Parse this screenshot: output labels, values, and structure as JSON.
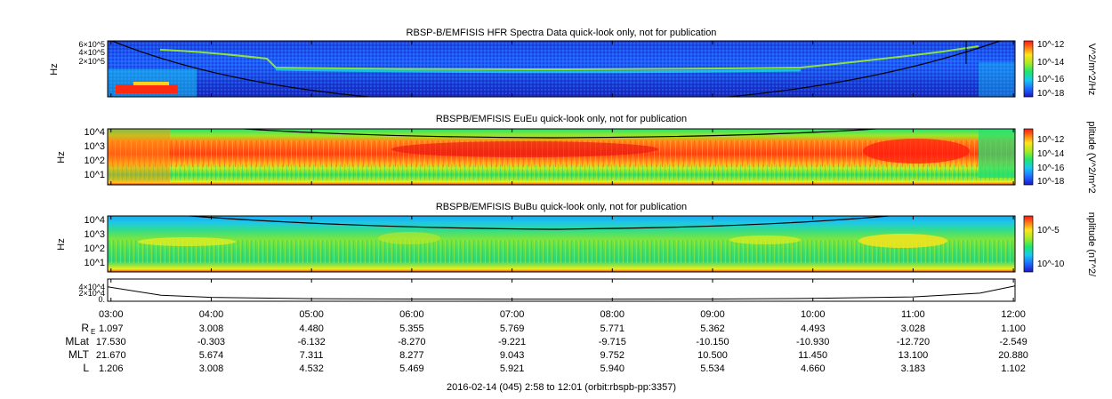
{
  "chart_data": [
    {
      "type": "heatmap",
      "title": "RBSP-B/EMFISIS  HFR Spectra Data quick-look only, not for publication",
      "ylabel": "Hz",
      "colorbar_label": "V^2/m^2/Hz",
      "yticks": [
        "6×10^5",
        "4×10^5",
        "2×10^5"
      ],
      "colorbar_ticks": [
        "10^-12",
        "10^-14",
        "10^-16",
        "10^-18"
      ],
      "colormap": "rainbow"
    },
    {
      "type": "heatmap",
      "title": "RBSPB/EMFISIS  EuEu quick-look only, not for publication",
      "ylabel": "Hz",
      "colorbar_label": "plitude (V^2/m^2",
      "yticks": [
        "10^4",
        "10^3",
        "10^2",
        "10^1"
      ],
      "colorbar_ticks": [
        "10^-12",
        "10^-14",
        "10^-16",
        "10^-18"
      ],
      "colormap": "rainbow"
    },
    {
      "type": "heatmap",
      "title": "RBSPB/EMFISIS  BuBu quick-look only, not for publication",
      "ylabel": "Hz",
      "colorbar_label": "nplitude (nT^2/",
      "yticks": [
        "10^4",
        "10^3",
        "10^2",
        "10^1"
      ],
      "colorbar_ticks": [
        "10^-5",
        "10^-10"
      ],
      "colormap": "rainbow"
    },
    {
      "type": "line",
      "yticks": [
        "4×10^4",
        "2×10^4",
        "0."
      ],
      "series": [
        {
          "x": [
            "02:58",
            "03:30",
            "04:00",
            "05:00",
            "06:00",
            "07:00",
            "08:00",
            "09:00",
            "10:00",
            "11:00",
            "11:40",
            "12:01"
          ],
          "values": [
            30000,
            10000,
            5000,
            2000,
            1000,
            800,
            800,
            1000,
            2500,
            6000,
            15000,
            32000
          ]
        }
      ]
    }
  ],
  "time_axis": {
    "ticks": [
      "03:00",
      "04:00",
      "05:00",
      "06:00",
      "07:00",
      "08:00",
      "09:00",
      "10:00",
      "11:00",
      "12:00"
    ]
  },
  "ephemeris": [
    {
      "label": "R",
      "sub": "E",
      "values": [
        "1.097",
        "3.008",
        "4.480",
        "5.355",
        "5.769",
        "5.771",
        "5.362",
        "4.493",
        "3.028",
        "1.100"
      ]
    },
    {
      "label": "MLat",
      "sub": "",
      "values": [
        "17.530",
        "-0.303",
        "-6.132",
        "-8.270",
        "-9.221",
        "-9.715",
        "-10.150",
        "-10.930",
        "-12.720",
        "-2.549"
      ]
    },
    {
      "label": "MLT",
      "sub": "",
      "values": [
        "21.670",
        "5.674",
        "7.311",
        "8.277",
        "9.043",
        "9.752",
        "10.500",
        "11.450",
        "13.100",
        "20.880"
      ]
    },
    {
      "label": "L",
      "sub": "",
      "values": [
        "1.206",
        "3.008",
        "4.532",
        "5.469",
        "5.921",
        "5.940",
        "5.534",
        "4.660",
        "3.183",
        "1.102"
      ]
    }
  ],
  "footer": "2016-02-14 (045) 2:58 to 12:01 (orbit:rbspb-pp:3357)"
}
